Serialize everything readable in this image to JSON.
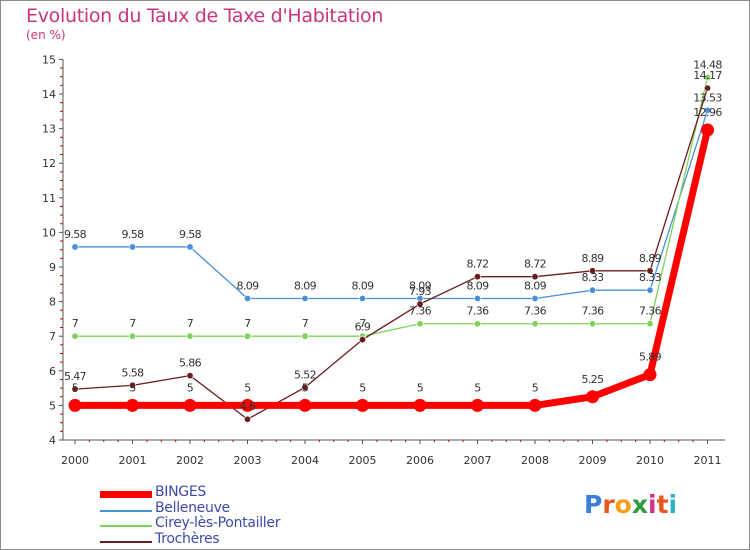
{
  "title": "Evolution du Taux de Taxe d'Habitation",
  "subtitle": "(en %)",
  "chart_data": {
    "type": "line",
    "x": [
      "2000",
      "2001",
      "2002",
      "2003",
      "2004",
      "2005",
      "2006",
      "2007",
      "2008",
      "2009",
      "2010",
      "2011"
    ],
    "ylim": [
      4,
      15
    ],
    "yticks": [
      "4",
      "5",
      "6",
      "7",
      "8",
      "9",
      "10",
      "11",
      "12",
      "13",
      "14",
      "15"
    ],
    "grid": false,
    "legend_position": "bottom-left",
    "series": [
      {
        "name": "BINGES",
        "color": "#ff0000",
        "values": [
          5,
          5,
          5,
          5,
          5,
          5,
          5,
          5,
          5,
          5.25,
          5.89,
          12.96
        ],
        "labels": [
          "5",
          "5",
          "5",
          "5",
          "5",
          "5",
          "5",
          "5",
          "5",
          "5.25",
          "5.89",
          "12.96"
        ]
      },
      {
        "name": "Belleneuve",
        "color": "#4a90d9",
        "values": [
          9.58,
          9.58,
          9.58,
          8.09,
          8.09,
          8.09,
          8.09,
          8.09,
          8.09,
          8.33,
          8.33,
          13.53
        ],
        "labels": [
          "9.58",
          "9.58",
          "9.58",
          "8.09",
          "8.09",
          "8.09",
          "8.09",
          "8.09",
          "8.09",
          "8.33",
          "8.33",
          "13.53"
        ]
      },
      {
        "name": "Cirey-lès-Pontailler",
        "color": "#7fd35a",
        "values": [
          7,
          7,
          7,
          7,
          7,
          7,
          7.36,
          7.36,
          7.36,
          7.36,
          7.36,
          14.48
        ],
        "labels": [
          "7",
          "7",
          "7",
          "7",
          "7",
          "7",
          "7.36",
          "7.36",
          "7.36",
          "7.36",
          "7.36",
          "14.48"
        ]
      },
      {
        "name": "Trochères",
        "color": "#6b1c1c",
        "values": [
          5.47,
          5.58,
          5.86,
          4.6,
          5.52,
          6.9,
          7.93,
          8.72,
          8.72,
          8.89,
          8.89,
          14.17
        ],
        "labels": [
          "5.47",
          "5.58",
          "5.86",
          "4.6",
          "5.52",
          "6.9",
          "7.93",
          "8.72",
          "8.72",
          "8.89",
          "8.89",
          "14.17"
        ]
      }
    ]
  },
  "legend": {
    "items": [
      "BINGES",
      "Belleneuve",
      "Cirey-lès-Pontailler",
      "Trochères"
    ]
  },
  "logo": {
    "letters": [
      "P",
      "r",
      "o",
      "x",
      "i",
      "t",
      "i"
    ],
    "colors": [
      "#3a7fd5",
      "#e8551f",
      "#f2a01c",
      "#2e9b3d",
      "#d6318a",
      "#e8551f",
      "#2eb0c9"
    ]
  }
}
